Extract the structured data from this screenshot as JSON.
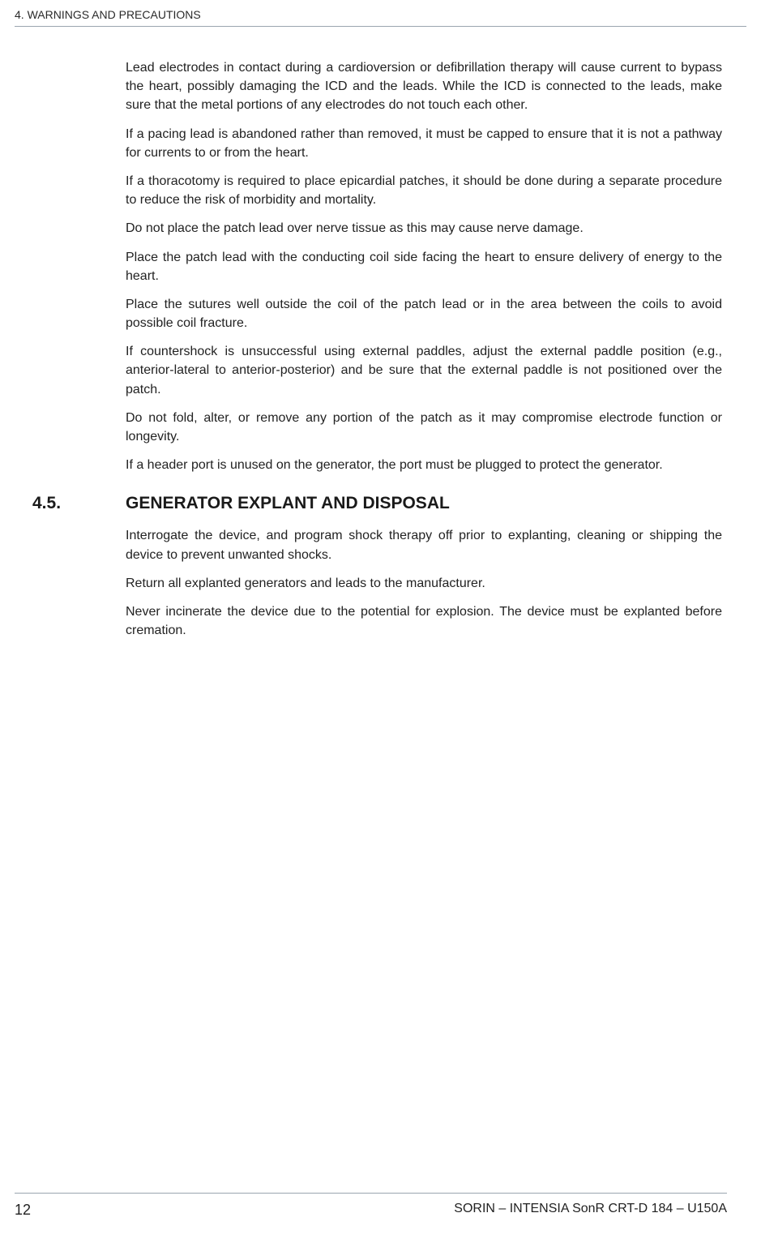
{
  "header": {
    "text": "4.  WARNINGS AND PRECAUTIONS"
  },
  "body": {
    "paragraphs": [
      "Lead electrodes in contact during a cardioversion or defibrillation therapy will cause current to bypass the heart, possibly damaging the ICD and the leads. While the ICD is connected to the leads, make sure that the metal portions of any electrodes do not touch each other.",
      "If a pacing lead is abandoned rather than removed, it must be capped to ensure that it is not a pathway for currents to or from the heart.",
      "If a thoracotomy is required to place epicardial patches, it should be done during a separate procedure to reduce the risk of morbidity and mortality.",
      "Do not place the patch lead over nerve tissue as this may cause nerve damage.",
      "Place the patch lead with the conducting coil side facing the heart to ensure delivery of energy to the heart.",
      "Place the sutures well outside the coil of the patch lead or in the area between the coils to avoid possible coil fracture.",
      "If countershock is unsuccessful using external paddles, adjust the external paddle position (e.g., anterior-lateral to anterior-posterior) and be sure that the external paddle is not positioned over the patch.",
      "Do not fold, alter, or remove any portion of the patch as it may compromise electrode function or longevity.",
      "If a header port is unused on the generator, the port must be plugged to protect the generator."
    ]
  },
  "section": {
    "number": "4.5.",
    "title": "GENERATOR EXPLANT AND DISPOSAL",
    "paragraphs": [
      "Interrogate the device, and program shock therapy off prior to explanting, cleaning or shipping the device to prevent unwanted shocks.",
      "Return all explanted generators and leads to the manufacturer.",
      "Never incinerate the device due to the potential for explosion. The device must be explanted before cremation."
    ]
  },
  "footer": {
    "page_number": "12",
    "doc_id": "SORIN – INTENSIA SonR CRT-D 184 – U150A"
  }
}
